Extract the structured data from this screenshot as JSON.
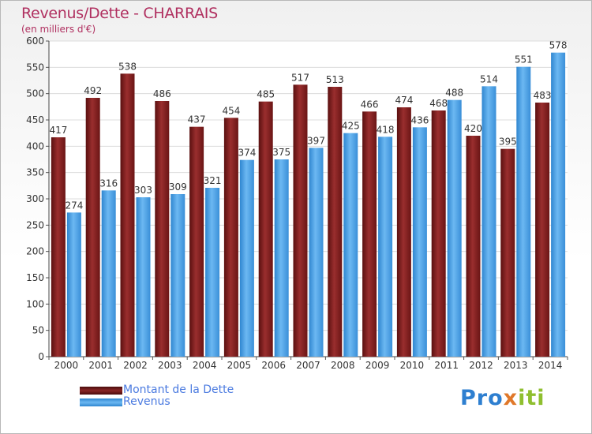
{
  "chart_data": {
    "type": "bar",
    "title": "Revenus/Dette - CHARRAIS",
    "subtitle": "(en milliers d'€)",
    "categories": [
      "2000",
      "2001",
      "2002",
      "2003",
      "2004",
      "2005",
      "2006",
      "2007",
      "2008",
      "2009",
      "2010",
      "2011",
      "2012",
      "2013",
      "2014"
    ],
    "series": [
      {
        "name": "Montant de la Dette",
        "color": "#7a1f1f",
        "values": [
          417,
          492,
          538,
          486,
          437,
          454,
          485,
          517,
          513,
          466,
          474,
          468,
          420,
          395,
          483
        ]
      },
      {
        "name": "Revenus",
        "color": "#4aa3e8",
        "values": [
          274,
          316,
          303,
          309,
          321,
          374,
          375,
          397,
          425,
          418,
          436,
          488,
          514,
          551,
          578
        ]
      }
    ],
    "ylim": [
      0,
      600
    ],
    "yticks": [
      0,
      50,
      100,
      150,
      200,
      250,
      300,
      350,
      400,
      450,
      500,
      550,
      600
    ],
    "grid": true,
    "legend_position": "bottom-left"
  },
  "logo": {
    "text_1": "Pro",
    "text_2": "x",
    "text_3": "iti"
  }
}
